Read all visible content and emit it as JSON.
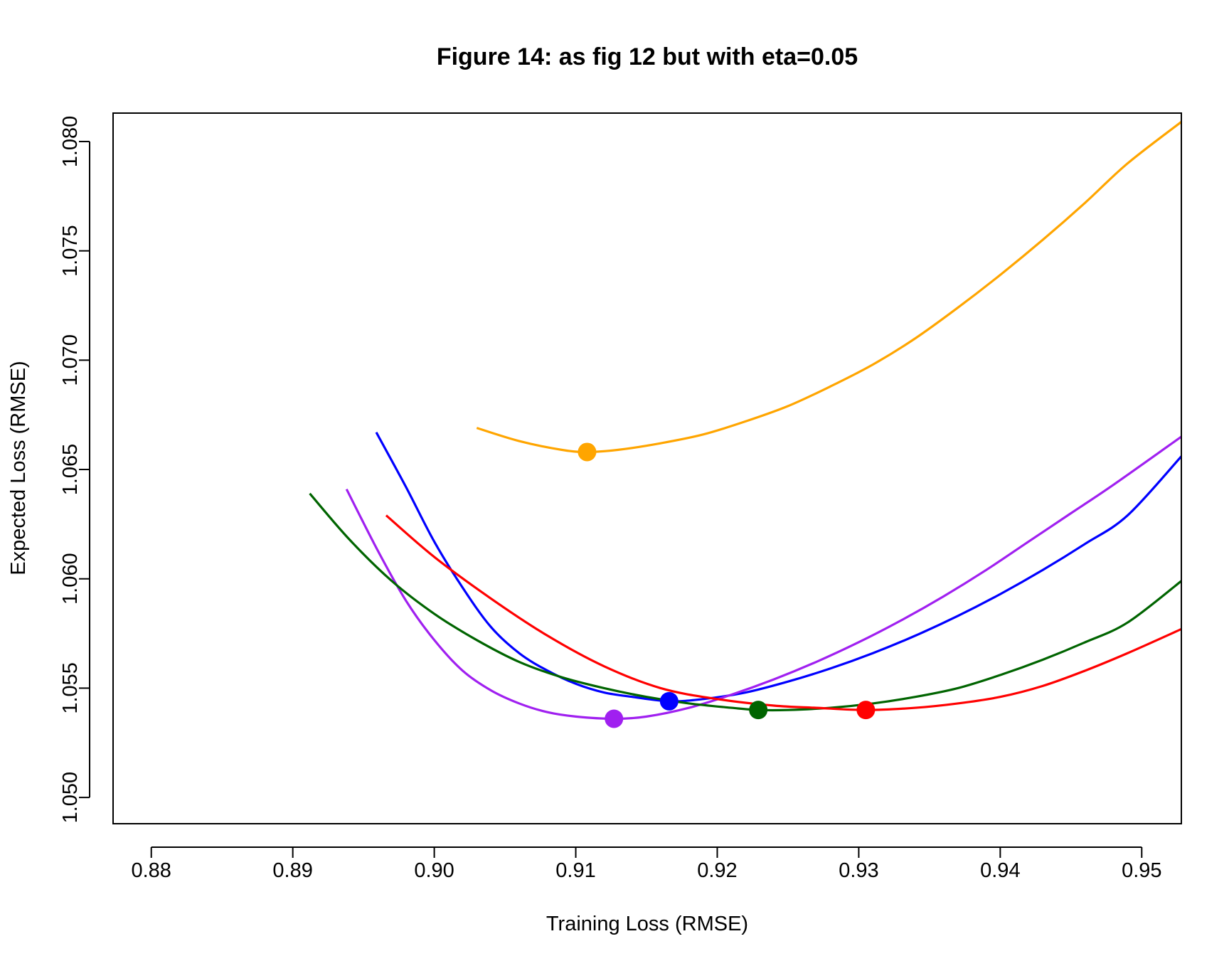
{
  "chart_data": {
    "type": "line",
    "title": "Figure 14: as fig 12 but with eta=0.05",
    "xlabel": "Training Loss (RMSE)",
    "ylabel": "Expected Loss (RMSE)",
    "xlim": [
      0.8773,
      0.9528
    ],
    "ylim": [
      1.0488,
      1.0813
    ],
    "xticks": [
      "0.88",
      "0.89",
      "0.90",
      "0.91",
      "0.92",
      "0.93",
      "0.94",
      "0.95"
    ],
    "yticks": [
      "1.050",
      "1.055",
      "1.060",
      "1.065",
      "1.070",
      "1.075",
      "1.080"
    ],
    "grid": false,
    "legend": "none",
    "series": [
      {
        "color": "#FFA500",
        "x": [
          0.903,
          0.906,
          0.909,
          0.9108,
          0.913,
          0.916,
          0.919,
          0.922,
          0.925,
          0.928,
          0.931,
          0.934,
          0.937,
          0.94,
          0.943,
          0.946,
          0.949,
          0.9528
        ],
        "y": [
          1.0669,
          1.0663,
          1.0659,
          1.0658,
          1.0659,
          1.0662,
          1.0666,
          1.0672,
          1.0679,
          1.0688,
          1.0698,
          1.071,
          1.0724,
          1.0739,
          1.0755,
          1.0772,
          1.079,
          1.0809
        ],
        "minimum": {
          "x": 0.9108,
          "y": 1.0658
        }
      },
      {
        "color": "#0000FF",
        "x": [
          0.8959,
          0.898,
          0.9,
          0.902,
          0.904,
          0.906,
          0.908,
          0.91,
          0.912,
          0.914,
          0.9166,
          0.919,
          0.922,
          0.925,
          0.928,
          0.931,
          0.934,
          0.937,
          0.94,
          0.943,
          0.946,
          0.949,
          0.9528
        ],
        "y": [
          1.0667,
          1.0642,
          1.0617,
          1.0596,
          1.0578,
          1.0566,
          1.0558,
          1.0552,
          1.0548,
          1.0546,
          1.0544,
          1.0545,
          1.0548,
          1.0553,
          1.0559,
          1.0566,
          1.0574,
          1.0583,
          1.0593,
          1.0604,
          1.0616,
          1.0629,
          1.0656
        ],
        "minimum": {
          "x": 0.9166,
          "y": 1.0544
        }
      },
      {
        "color": "#A020F0",
        "x": [
          0.8938,
          0.896,
          0.898,
          0.9,
          0.902,
          0.904,
          0.906,
          0.908,
          0.91,
          0.9127,
          0.915,
          0.918,
          0.921,
          0.924,
          0.927,
          0.93,
          0.933,
          0.936,
          0.939,
          0.942,
          0.945,
          0.948,
          0.9528
        ],
        "y": [
          1.0641,
          1.0613,
          1.059,
          1.0572,
          1.0558,
          1.0549,
          1.0543,
          1.0539,
          1.0537,
          1.0536,
          1.0537,
          1.0541,
          1.0547,
          1.0554,
          1.0562,
          1.0571,
          1.0581,
          1.0592,
          1.0604,
          1.0617,
          1.063,
          1.0643,
          1.0665
        ],
        "minimum": {
          "x": 0.9127,
          "y": 1.0536
        }
      },
      {
        "color": "#006400",
        "x": [
          0.8912,
          0.894,
          0.897,
          0.9,
          0.903,
          0.906,
          0.909,
          0.912,
          0.915,
          0.918,
          0.921,
          0.9229,
          0.925,
          0.928,
          0.931,
          0.934,
          0.937,
          0.94,
          0.943,
          0.946,
          0.949,
          0.9528
        ],
        "y": [
          1.0639,
          1.0618,
          1.0599,
          1.0584,
          1.0572,
          1.0562,
          1.0555,
          1.055,
          1.0546,
          1.0543,
          1.0541,
          1.054,
          1.054,
          1.0541,
          1.0543,
          1.0546,
          1.055,
          1.0556,
          1.0563,
          1.0571,
          1.058,
          1.0599
        ],
        "minimum": {
          "x": 0.9229,
          "y": 1.054
        }
      },
      {
        "color": "#FF0000",
        "x": [
          0.8966,
          0.9,
          0.904,
          0.908,
          0.912,
          0.916,
          0.92,
          0.924,
          0.927,
          0.9305,
          0.934,
          0.937,
          0.94,
          0.943,
          0.946,
          0.949,
          0.9528
        ],
        "y": [
          1.0629,
          1.061,
          1.0591,
          1.0574,
          1.056,
          1.055,
          1.0545,
          1.0542,
          1.0541,
          1.054,
          1.0541,
          1.0543,
          1.0546,
          1.0551,
          1.0558,
          1.0566,
          1.0577
        ],
        "minimum": {
          "x": 0.9305,
          "y": 1.054
        }
      }
    ]
  }
}
